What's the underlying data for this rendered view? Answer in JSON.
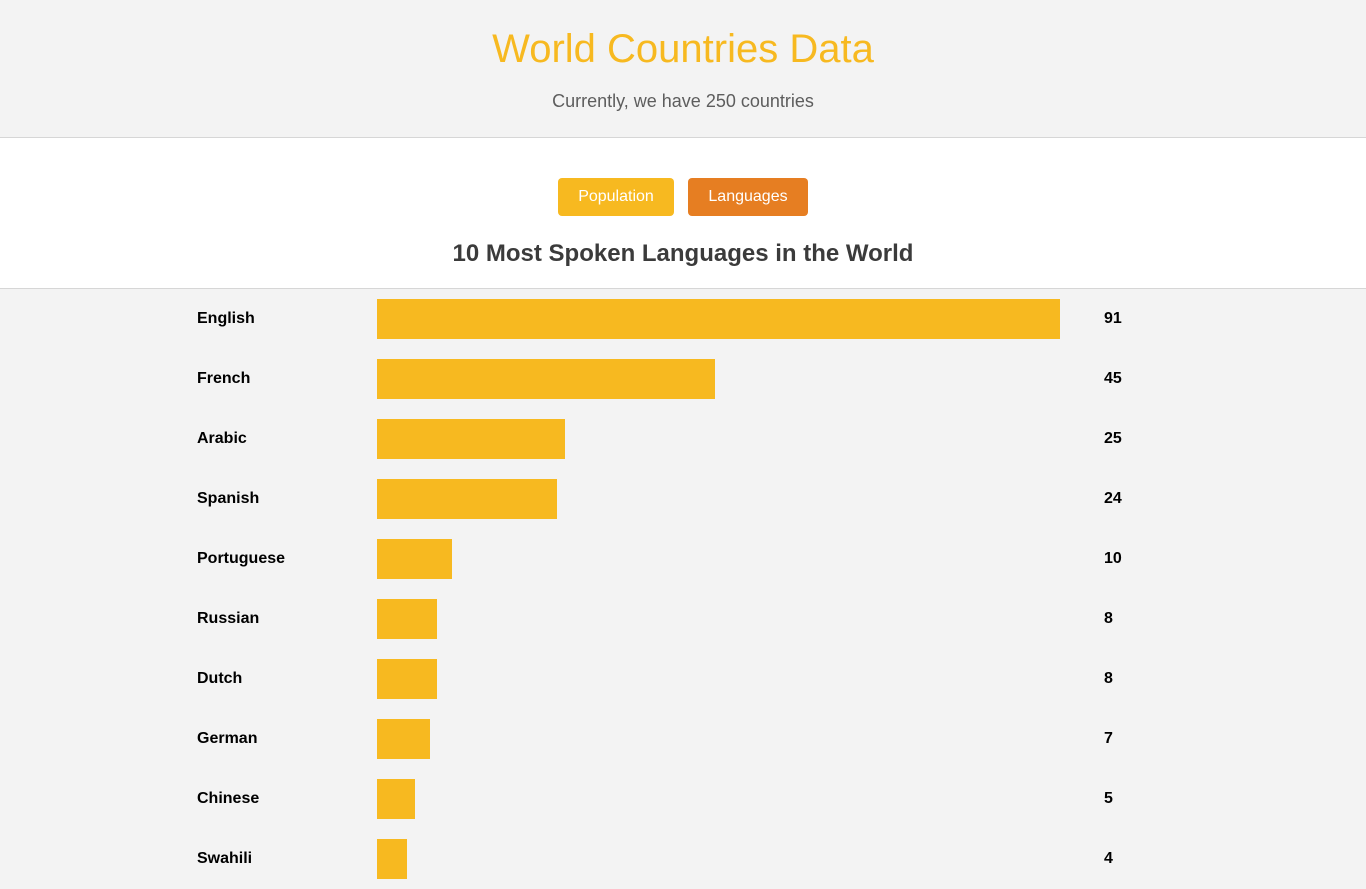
{
  "header": {
    "title": "World Countries Data",
    "subtitle": "Currently, we have 250 countries"
  },
  "buttons": {
    "population_label": "Population",
    "languages_label": "Languages"
  },
  "colors": {
    "accent": "#f7b920",
    "active_button": "#e67e22"
  },
  "chart_data": {
    "type": "bar",
    "title": "10 Most Spoken Languages in the World",
    "orientation": "horizontal",
    "categories": [
      "English",
      "French",
      "Arabic",
      "Spanish",
      "Portuguese",
      "Russian",
      "Dutch",
      "German",
      "Chinese",
      "Swahili"
    ],
    "values": [
      91,
      45,
      25,
      24,
      10,
      8,
      8,
      7,
      5,
      4
    ],
    "xlim": [
      0,
      91
    ]
  }
}
